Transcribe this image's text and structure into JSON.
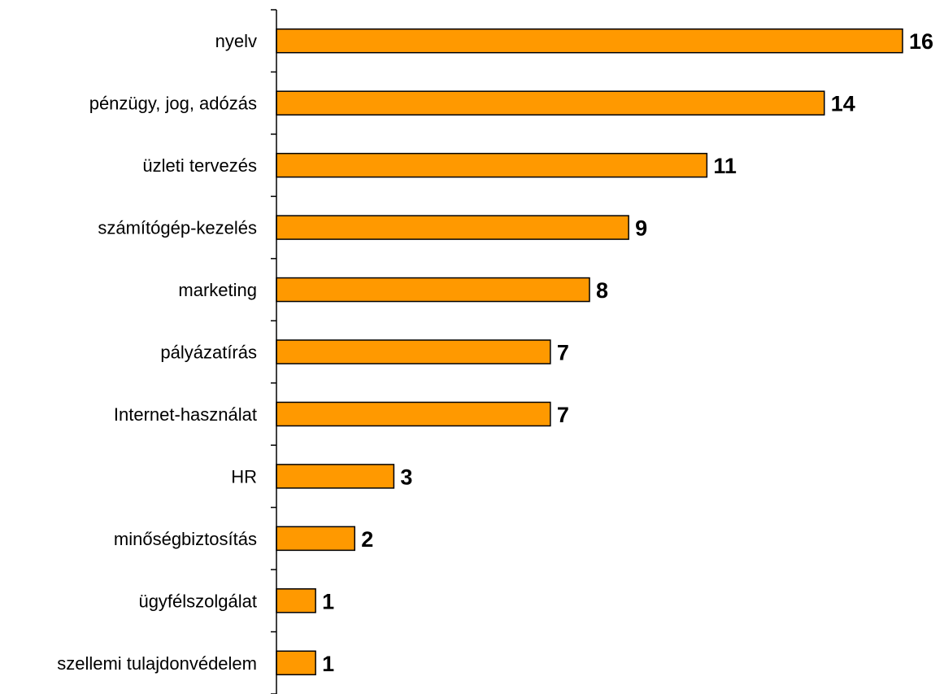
{
  "chart_data": {
    "type": "bar",
    "orientation": "horizontal",
    "categories": [
      "nyelv",
      "pénzügy, jog, adózás",
      "üzleti tervezés",
      "számítógép-kezelés",
      "marketing",
      "pályázatírás",
      "Internet-használat",
      "HR",
      "minőségbiztosítás",
      "ügyfélszolgálat",
      "szellemi tulajdonvédelem"
    ],
    "values": [
      16,
      14,
      11,
      9,
      8,
      7,
      7,
      3,
      2,
      1,
      1
    ],
    "data_labels": [
      "16",
      "14",
      "11",
      "9",
      "8",
      "7",
      "7",
      "3",
      "2",
      "1",
      "1"
    ],
    "xlim": [
      0,
      16
    ],
    "bar_color": "#FF9900",
    "grid": false,
    "legend": "none"
  }
}
